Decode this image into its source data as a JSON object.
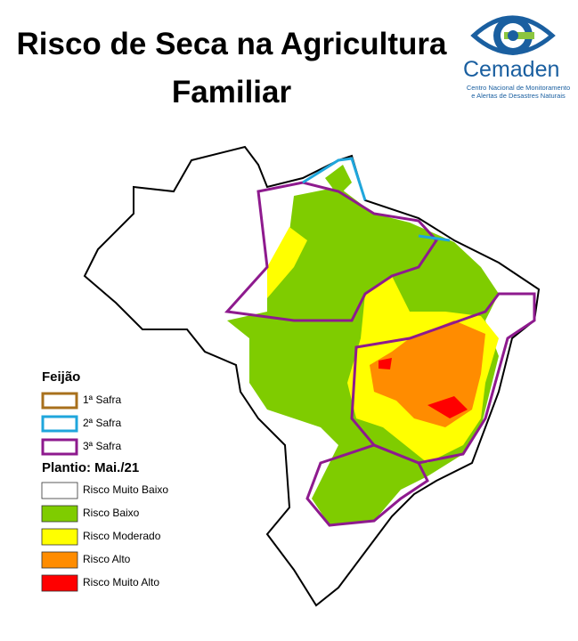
{
  "header": {
    "title_lines": [
      "Risco de Seca na Agricultura",
      "Familiar"
    ]
  },
  "logo": {
    "name": "Cemaden",
    "subtitle_lines": [
      "Centro Nacional de Monitoramento",
      "e Alertas de Desastres Naturais"
    ]
  },
  "legend": {
    "crop_title": "Feijão",
    "seasons": [
      {
        "label": "1ª Safra",
        "color": "#a8701c"
      },
      {
        "label": "2ª Safra",
        "color": "#1fa6dc"
      },
      {
        "label": "3ª Safra",
        "color": "#8e1a8e"
      }
    ],
    "planting_title": "Plantio: Mai./21",
    "risks": [
      {
        "label": "Risco Muito Baixo",
        "color": "#ffffff"
      },
      {
        "label": "Risco Baixo",
        "color": "#7fcc00"
      },
      {
        "label": "Risco Moderado",
        "color": "#ffff00"
      },
      {
        "label": "Risco Alto",
        "color": "#ff8c00"
      },
      {
        "label": "Risco Muito Alto",
        "color": "#ff0000"
      }
    ]
  }
}
